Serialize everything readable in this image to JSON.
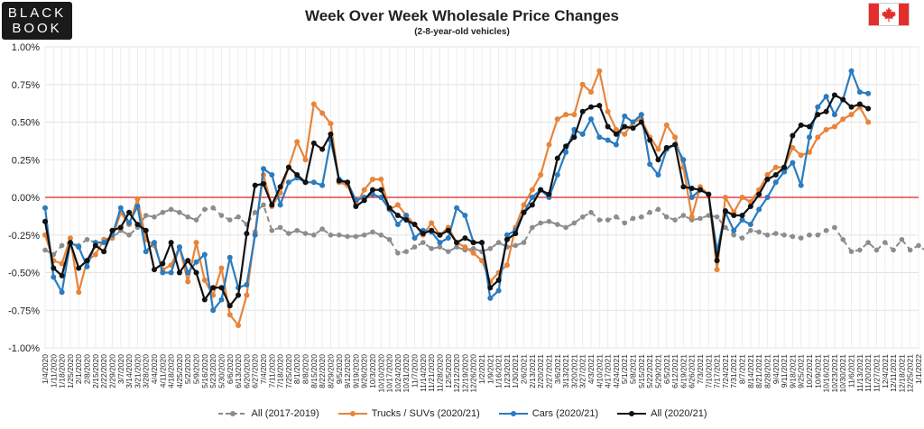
{
  "logo": {
    "line1": "BLACK",
    "line2": "BOOK"
  },
  "flag": {
    "name": "canada-flag",
    "red": "#e52e2c"
  },
  "chart_data": {
    "type": "line",
    "title": "Week Over Week Wholesale Price Changes",
    "subtitle": "(2-8-year-old vehicles)",
    "xlabel": "",
    "ylabel": "",
    "ylim": [
      -1.0,
      1.0
    ],
    "yticks": [
      1.0,
      0.75,
      0.5,
      0.25,
      0.0,
      -0.25,
      -0.5,
      -0.75,
      -1.0
    ],
    "ytick_labels": [
      "1.00%",
      "0.75%",
      "0.50%",
      "0.25%",
      "0.00%",
      "-0.25%",
      "-0.50%",
      "-0.75%",
      "-1.00%"
    ],
    "grid": true,
    "zero_line_color": "#e02020",
    "legend_position": "bottom",
    "x_tick_labels": [
      "1/4/2020",
      "1/11/2020",
      "1/18/2020",
      "1/25/2020",
      "2/1/2020",
      "2/8/2020",
      "2/15/2020",
      "2/22/2020",
      "2/29/2020",
      "3/7/2020",
      "3/14/2020",
      "3/21/2020",
      "3/28/2020",
      "4/4/2020",
      "4/11/2020",
      "4/18/2020",
      "4/25/2020",
      "5/2/2020",
      "5/9/2020",
      "5/16/2020",
      "5/23/2020",
      "5/30/2020",
      "6/6/2020",
      "6/13/2020",
      "6/20/2020",
      "6/27/2020",
      "7/4/2020",
      "7/11/2020",
      "7/18/2020",
      "7/25/2020",
      "8/1/2020",
      "8/8/2020",
      "8/15/2020",
      "8/22/2020",
      "8/29/2020",
      "9/5/2020",
      "9/12/2020",
      "9/19/2020",
      "9/26/2020",
      "10/3/2020",
      "10/10/2020",
      "10/17/2020",
      "10/24/2020",
      "10/31/2020",
      "11/7/2020",
      "11/14/2020",
      "11/21/2020",
      "11/28/2020",
      "12/5/2020",
      "12/12/2020",
      "12/19/2020",
      "12/26/2020",
      "1/2/2021",
      "1/9/2021",
      "1/16/2021",
      "1/23/2021",
      "1/30/2021",
      "2/6/2021",
      "2/13/2021",
      "2/20/2021",
      "2/27/2021",
      "3/6/2021",
      "3/13/2021",
      "3/20/2021",
      "3/27/2021",
      "4/3/2021",
      "4/10/2021",
      "4/17/2021",
      "4/24/2021",
      "5/1/2021",
      "5/8/2021",
      "5/15/2021",
      "5/22/2021",
      "5/29/2021",
      "6/5/2021",
      "6/12/2021",
      "6/19/2021",
      "6/26/2021",
      "7/3/2021",
      "7/10/2021",
      "7/17/2021",
      "7/24/2021",
      "7/31/2021",
      "8/7/2021",
      "8/14/2021",
      "8/21/2021",
      "8/28/2021",
      "9/4/2021",
      "9/11/2021",
      "9/18/2021",
      "9/25/2021",
      "10/2/2021",
      "10/9/2021",
      "10/16/2021",
      "10/23/2021",
      "10/30/2021",
      "11/6/2021",
      "11/13/2021",
      "11/20/2021",
      "11/27/2021",
      "12/4/2021",
      "12/11/2021",
      "12/18/2021",
      "12/25/2021",
      "1/1/2022"
    ],
    "x_tick_label_step": 1,
    "series": [
      {
        "name": "All (2017-2019)",
        "color": "#8c8c8c",
        "dashed": true,
        "values": [
          -0.35,
          -0.38,
          -0.32,
          -0.3,
          -0.32,
          -0.28,
          -0.3,
          -0.3,
          -0.27,
          -0.22,
          -0.25,
          -0.2,
          -0.12,
          -0.13,
          -0.1,
          -0.08,
          -0.1,
          -0.13,
          -0.15,
          -0.08,
          -0.07,
          -0.12,
          -0.15,
          -0.13,
          -0.18,
          -0.1,
          -0.05,
          -0.22,
          -0.2,
          -0.24,
          -0.22,
          -0.24,
          -0.25,
          -0.21,
          -0.25,
          -0.25,
          -0.26,
          -0.26,
          -0.25,
          -0.23,
          -0.25,
          -0.28,
          -0.37,
          -0.36,
          -0.33,
          -0.3,
          -0.34,
          -0.33,
          -0.36,
          -0.33,
          -0.35,
          -0.34,
          -0.36,
          -0.34,
          -0.3,
          -0.33,
          -0.32,
          -0.3,
          -0.2,
          -0.17,
          -0.16,
          -0.18,
          -0.2,
          -0.17,
          -0.13,
          -0.1,
          -0.15,
          -0.15,
          -0.13,
          -0.17,
          -0.14,
          -0.13,
          -0.1,
          -0.08,
          -0.13,
          -0.15,
          -0.12,
          -0.15,
          -0.14,
          -0.12,
          -0.13,
          -0.2,
          -0.25,
          -0.27,
          -0.22,
          -0.23,
          -0.25,
          -0.24,
          -0.25,
          -0.26,
          -0.27,
          -0.25,
          -0.25,
          -0.22,
          -0.2,
          -0.28,
          -0.36,
          -0.35,
          -0.3,
          -0.35,
          -0.3,
          -0.35,
          -0.28,
          -0.35,
          -0.32,
          -0.36,
          -0.38,
          -0.34,
          -0.37,
          -0.36,
          -0.35
        ]
      },
      {
        "name": "Trucks / SUVs (2020/21)",
        "color": "#e8843a",
        "dashed": false,
        "values": [
          -0.25,
          -0.42,
          -0.44,
          -0.27,
          -0.63,
          -0.42,
          -0.38,
          -0.28,
          -0.27,
          -0.1,
          -0.18,
          -0.01,
          -0.28,
          -0.32,
          -0.48,
          -0.45,
          -0.33,
          -0.56,
          -0.3,
          -0.55,
          -0.65,
          -0.47,
          -0.78,
          -0.85,
          -0.65,
          -0.23,
          0.15,
          -0.06,
          0.03,
          0.2,
          0.37,
          0.25,
          0.62,
          0.56,
          0.49,
          0.1,
          0.08,
          -0.05,
          0.05,
          0.12,
          0.12,
          -0.08,
          -0.05,
          -0.12,
          -0.18,
          -0.25,
          -0.17,
          -0.25,
          -0.2,
          -0.3,
          -0.33,
          -0.37,
          -0.42,
          -0.56,
          -0.5,
          -0.45,
          -0.2,
          -0.05,
          0.05,
          0.15,
          0.35,
          0.52,
          0.55,
          0.55,
          0.75,
          0.7,
          0.84,
          0.57,
          0.45,
          0.42,
          0.5,
          0.52,
          0.4,
          0.32,
          0.48,
          0.4,
          0.2,
          -0.13,
          0.07,
          0.02,
          -0.48,
          0.0,
          -0.1,
          0.0,
          -0.03,
          0.05,
          0.15,
          0.2,
          0.2,
          0.33,
          0.28,
          0.3,
          0.4,
          0.45,
          0.47,
          0.52,
          0.55,
          0.6,
          0.5
        ],
        "x_offset": 0
      },
      {
        "name": "Cars (2020/21)",
        "color": "#2a7bbf",
        "dashed": false,
        "values": [
          -0.07,
          -0.53,
          -0.63,
          -0.3,
          -0.33,
          -0.46,
          -0.3,
          -0.3,
          -0.25,
          -0.07,
          -0.17,
          -0.06,
          -0.36,
          -0.3,
          -0.5,
          -0.5,
          -0.33,
          -0.5,
          -0.43,
          -0.38,
          -0.75,
          -0.68,
          -0.4,
          -0.6,
          -0.58,
          -0.25,
          0.19,
          0.15,
          -0.05,
          0.1,
          0.13,
          0.1,
          0.1,
          0.08,
          0.38,
          0.12,
          0.1,
          -0.02,
          0.0,
          0.02,
          0.0,
          -0.08,
          -0.18,
          -0.12,
          -0.27,
          -0.22,
          -0.23,
          -0.3,
          -0.27,
          -0.07,
          -0.12,
          -0.3,
          -0.3,
          -0.67,
          -0.62,
          -0.25,
          -0.22,
          -0.1,
          0.0,
          0.05,
          0.0,
          0.15,
          0.3,
          0.45,
          0.42,
          0.52,
          0.4,
          0.38,
          0.35,
          0.54,
          0.5,
          0.55,
          0.22,
          0.15,
          0.32,
          0.35,
          0.25,
          0.0,
          0.05,
          0.02,
          -0.36,
          -0.1,
          -0.22,
          -0.15,
          -0.18,
          -0.08,
          0.0,
          0.1,
          0.17,
          0.23,
          0.08,
          0.4,
          0.6,
          0.67,
          0.55,
          0.65,
          0.84,
          0.7,
          0.69
        ],
        "x_offset": 0
      },
      {
        "name": "All (2020/21)",
        "color": "#111111",
        "dashed": false,
        "values": [
          -0.16,
          -0.47,
          -0.52,
          -0.3,
          -0.47,
          -0.42,
          -0.32,
          -0.36,
          -0.22,
          -0.2,
          -0.1,
          -0.18,
          -0.22,
          -0.48,
          -0.44,
          -0.3,
          -0.5,
          -0.42,
          -0.5,
          -0.68,
          -0.6,
          -0.6,
          -0.72,
          -0.65,
          -0.24,
          0.08,
          0.09,
          -0.05,
          0.07,
          0.2,
          0.15,
          0.1,
          0.36,
          0.32,
          0.42,
          0.11,
          0.1,
          -0.06,
          -0.02,
          0.05,
          0.05,
          -0.07,
          -0.12,
          -0.15,
          -0.18,
          -0.24,
          -0.22,
          -0.25,
          -0.22,
          -0.3,
          -0.27,
          -0.3,
          -0.3,
          -0.6,
          -0.55,
          -0.28,
          -0.24,
          -0.1,
          -0.05,
          0.05,
          0.02,
          0.26,
          0.34,
          0.4,
          0.57,
          0.6,
          0.61,
          0.47,
          0.42,
          0.47,
          0.46,
          0.5,
          0.38,
          0.25,
          0.33,
          0.35,
          0.07,
          0.06,
          0.05,
          0.02,
          -0.42,
          -0.09,
          -0.12,
          -0.12,
          -0.06,
          0.02,
          0.12,
          0.15,
          0.2,
          0.41,
          0.48,
          0.47,
          0.55,
          0.57,
          0.68,
          0.65,
          0.6,
          0.62,
          0.59
        ],
        "x_offset": 0
      }
    ],
    "series_start_index": [
      0,
      0,
      0,
      0
    ]
  }
}
